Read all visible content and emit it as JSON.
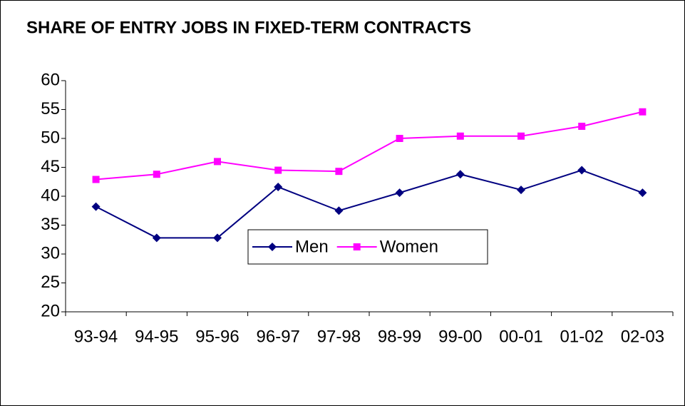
{
  "chart_data": {
    "type": "line",
    "title": "SHARE OF ENTRY JOBS IN FIXED-TERM CONTRACTS",
    "categories": [
      "93-94",
      "94-95",
      "95-96",
      "96-97",
      "97-98",
      "98-99",
      "99-00",
      "00-01",
      "01-02",
      "02-03"
    ],
    "series": [
      {
        "name": "Men",
        "color": "#000080",
        "marker": "diamond",
        "values": [
          38.2,
          32.8,
          32.8,
          41.6,
          37.5,
          40.6,
          43.8,
          41.1,
          44.5,
          40.6
        ]
      },
      {
        "name": "Women",
        "color": "#ff00ff",
        "marker": "square",
        "values": [
          42.9,
          43.8,
          46.0,
          44.5,
          44.3,
          50.0,
          50.4,
          50.4,
          52.1,
          54.6
        ]
      }
    ],
    "ylim": [
      20,
      60
    ],
    "yticks": [
      20,
      25,
      30,
      35,
      40,
      45,
      50,
      55,
      60
    ],
    "grid": false,
    "legend": "bottom"
  }
}
